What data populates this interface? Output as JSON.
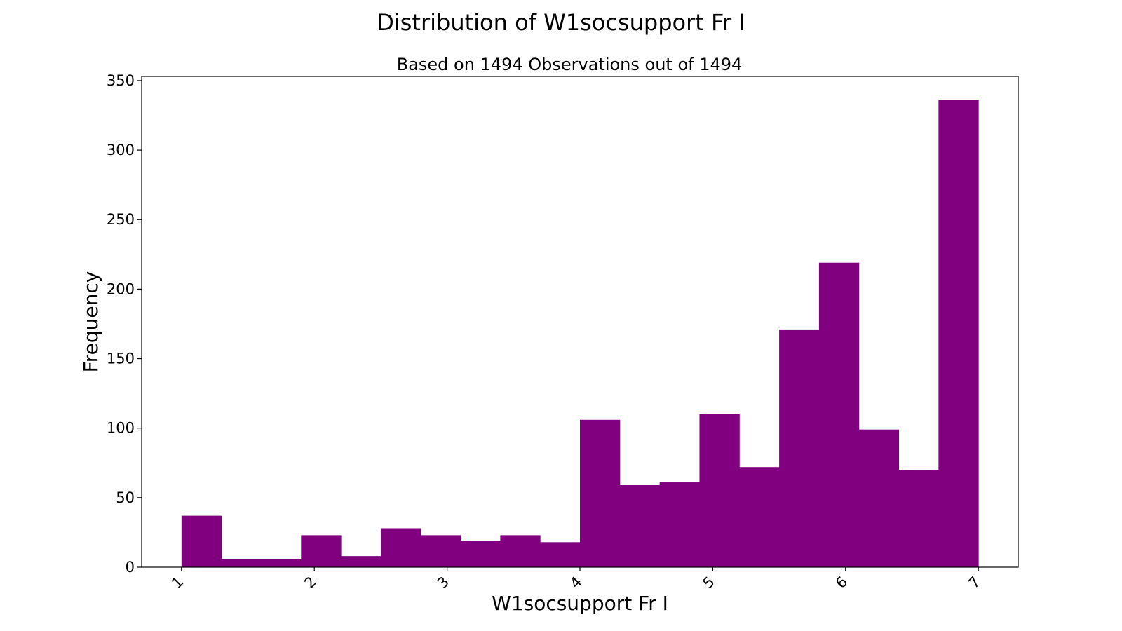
{
  "chart_data": {
    "type": "bar",
    "title": "Distribution of W1socsupport Fr I",
    "subtitle": "Based on 1494 Observations out of 1494",
    "xlabel": "W1socsupport Fr I",
    "ylabel": "Frequency",
    "xlim": [
      0.7,
      7.3
    ],
    "ylim": [
      0,
      353
    ],
    "xticks": [
      1,
      2,
      3,
      4,
      5,
      6,
      7
    ],
    "yticks": [
      0,
      50,
      100,
      150,
      200,
      250,
      300,
      350
    ],
    "bin_width": 0.3,
    "bins": [
      {
        "x0": 1.0,
        "x1": 1.3,
        "count": 37
      },
      {
        "x0": 1.3,
        "x1": 1.6,
        "count": 6
      },
      {
        "x0": 1.6,
        "x1": 1.9,
        "count": 6
      },
      {
        "x0": 1.9,
        "x1": 2.2,
        "count": 23
      },
      {
        "x0": 2.2,
        "x1": 2.5,
        "count": 8
      },
      {
        "x0": 2.5,
        "x1": 2.8,
        "count": 28
      },
      {
        "x0": 2.8,
        "x1": 3.1,
        "count": 23
      },
      {
        "x0": 3.1,
        "x1": 3.4,
        "count": 19
      },
      {
        "x0": 3.4,
        "x1": 3.7,
        "count": 23
      },
      {
        "x0": 3.7,
        "x1": 4.0,
        "count": 18
      },
      {
        "x0": 4.0,
        "x1": 4.3,
        "count": 106
      },
      {
        "x0": 4.3,
        "x1": 4.6,
        "count": 59
      },
      {
        "x0": 4.6,
        "x1": 4.9,
        "count": 61
      },
      {
        "x0": 4.9,
        "x1": 5.2,
        "count": 110
      },
      {
        "x0": 5.2,
        "x1": 5.5,
        "count": 72
      },
      {
        "x0": 5.5,
        "x1": 5.8,
        "count": 171
      },
      {
        "x0": 5.8,
        "x1": 6.1,
        "count": 219
      },
      {
        "x0": 6.1,
        "x1": 6.4,
        "count": 99
      },
      {
        "x0": 6.4,
        "x1": 6.7,
        "count": 70
      },
      {
        "x0": 6.7,
        "x1": 7.0,
        "count": 336
      }
    ],
    "bar_color": "#800080",
    "grid": false,
    "legend": "none"
  }
}
